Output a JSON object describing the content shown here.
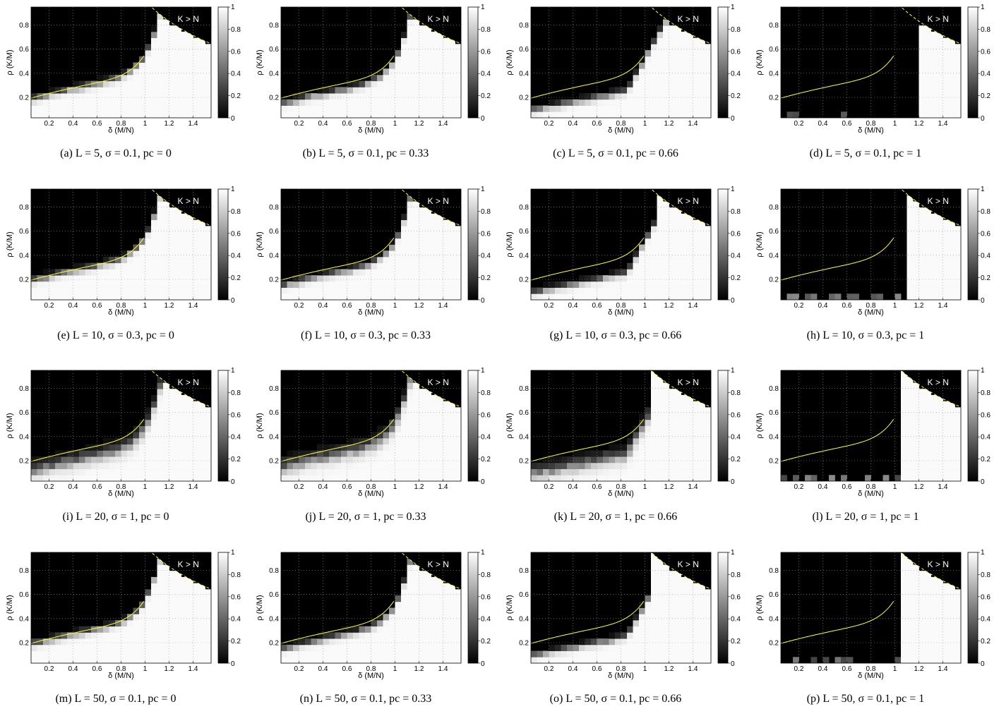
{
  "figure": {
    "panels": [
      {
        "caption": "(a) L = 5, σ = 0.1, pc = 0",
        "L": 5,
        "sigma": 0.1,
        "pc": 0
      },
      {
        "caption": "(b) L = 5, σ = 0.1, pc = 0.33",
        "L": 5,
        "sigma": 0.1,
        "pc": 0.33
      },
      {
        "caption": "(c) L = 5, σ = 0.1, pc = 0.66",
        "L": 5,
        "sigma": 0.1,
        "pc": 0.66
      },
      {
        "caption": "(d) L = 5, σ = 0.1, pc = 1",
        "L": 5,
        "sigma": 0.1,
        "pc": 1
      },
      {
        "caption": "(e) L = 10, σ = 0.3, pc = 0",
        "L": 10,
        "sigma": 0.3,
        "pc": 0
      },
      {
        "caption": "(f) L = 10, σ = 0.3, pc = 0.33",
        "L": 10,
        "sigma": 0.3,
        "pc": 0.33
      },
      {
        "caption": "(g) L = 10, σ = 0.3, pc = 0.66",
        "L": 10,
        "sigma": 0.3,
        "pc": 0.66
      },
      {
        "caption": "(h) L = 10, σ = 0.3, pc = 1",
        "L": 10,
        "sigma": 0.3,
        "pc": 1
      },
      {
        "caption": "(i) L = 20, σ = 1, pc = 0",
        "L": 20,
        "sigma": 1,
        "pc": 0
      },
      {
        "caption": "(j) L = 20, σ = 1, pc = 0.33",
        "L": 20,
        "sigma": 1,
        "pc": 0.33
      },
      {
        "caption": "(k) L = 20, σ = 1, pc = 0.66",
        "L": 20,
        "sigma": 1,
        "pc": 0.66
      },
      {
        "caption": "(l) L = 20, σ = 1, pc = 1",
        "L": 20,
        "sigma": 1,
        "pc": 1
      },
      {
        "caption": "(m) L = 50, σ = 0.1, pc = 0",
        "L": 50,
        "sigma": 0.1,
        "pc": 0
      },
      {
        "caption": "(n) L = 50, σ = 0.1, pc = 0.33",
        "L": 50,
        "sigma": 0.1,
        "pc": 0.33
      },
      {
        "caption": "(o) L = 50, σ = 0.1, pc = 0.66",
        "L": 50,
        "sigma": 0.1,
        "pc": 0.66
      },
      {
        "caption": "(p) L = 50, σ = 0.1, pc = 1",
        "L": 50,
        "sigma": 0.1,
        "pc": 1
      }
    ]
  },
  "chart_data": {
    "type": "heatmap",
    "xlabel": "δ (M/N)",
    "ylabel": "ρ (K/M)",
    "xlim": [
      0.05,
      1.55
    ],
    "ylim": [
      0.03,
      0.95
    ],
    "xticks": [
      "0.2",
      "0.4",
      "0.6",
      "0.8",
      "1",
      "1.2",
      "1.4"
    ],
    "yticks": [
      "0.2",
      "0.4",
      "0.6",
      "0.8"
    ],
    "colorbar_ticks": [
      "0",
      "0.2",
      "0.4",
      "0.6",
      "0.8",
      "1"
    ],
    "colorbar_range": [
      0,
      1
    ],
    "region_label": "K > N",
    "grid": true,
    "curve_color": "#ffff33",
    "colormap": "gray"
  }
}
